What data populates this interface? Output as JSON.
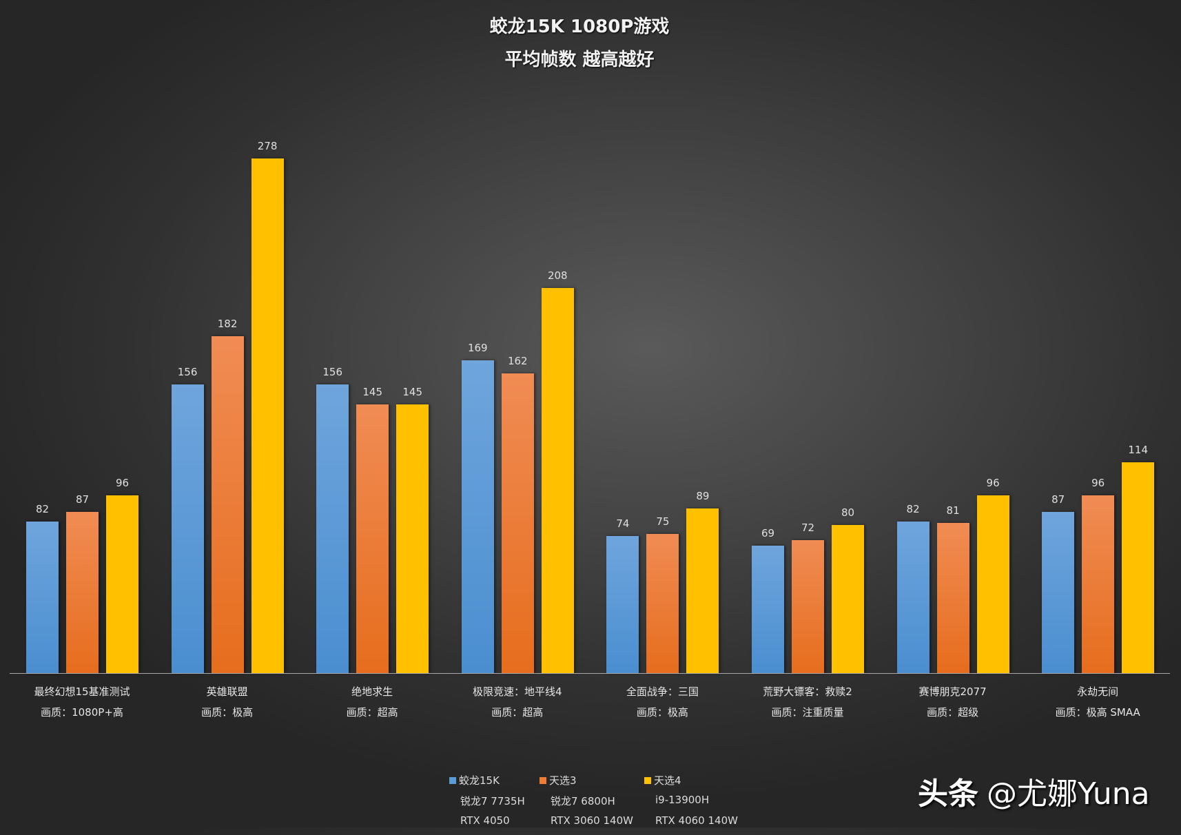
{
  "chart_data": {
    "type": "bar",
    "title": "蛟龙15K 1080P游戏",
    "subtitle": "平均帧数 越高越好",
    "xlabel": "",
    "ylabel": "",
    "ylim": [
      0,
      290
    ],
    "grid": false,
    "legend_position": "bottom",
    "categories": [
      {
        "name": "最终幻想15基准测试",
        "quality": "画质：1080P+高"
      },
      {
        "name": "英雄联盟",
        "quality": "画质：极高"
      },
      {
        "name": "绝地求生",
        "quality": "画质：超高"
      },
      {
        "name": "极限竞速：地平线4",
        "quality": "画质：超高"
      },
      {
        "name": "全面战争：三国",
        "quality": "画质：极高"
      },
      {
        "name": "荒野大镖客：救赎2",
        "quality": "画质：注重质量"
      },
      {
        "name": "赛博朋克2077",
        "quality": "画质：超级"
      },
      {
        "name": "永劫无间",
        "quality": "画质：极高 SMAA"
      }
    ],
    "series": [
      {
        "name": "蛟龙15K",
        "cpu": "锐龙7 7735H",
        "gpu": "RTX 4050",
        "color": "#5b9bd5",
        "values": [
          82,
          156,
          156,
          169,
          74,
          69,
          82,
          87
        ]
      },
      {
        "name": "天选3",
        "cpu": "锐龙7 6800H",
        "gpu": "RTX 3060 140W",
        "color": "#ed7d31",
        "values": [
          87,
          182,
          145,
          162,
          75,
          72,
          81,
          96
        ]
      },
      {
        "name": "天选4",
        "cpu": "i9-13900H",
        "gpu": "RTX 4060 140W",
        "color": "#ffc000",
        "values": [
          96,
          278,
          145,
          208,
          89,
          80,
          96,
          114
        ]
      }
    ]
  },
  "watermark": {
    "brand": "头条",
    "handle": "@尤娜Yuna"
  }
}
